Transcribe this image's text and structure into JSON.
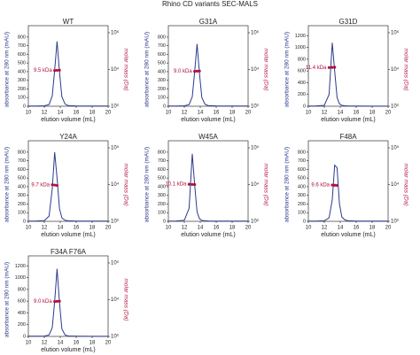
{
  "title": "Rhino CD variants SEC-MALS",
  "chart_data": [
    {
      "type": "line",
      "title": "WT",
      "xlabel": "elution volume (mL)",
      "ylabel": "absorbance at 280 nm (mAU)",
      "y2label": "molar mass (Da)",
      "annotation": "9.5 kDa",
      "x": [
        10,
        11,
        12,
        12.6,
        13,
        13.3,
        13.6,
        13.9,
        14.2,
        14.6,
        15,
        16,
        18,
        20
      ],
      "series": [
        {
          "name": "absorbance",
          "color": "#2b3a8c",
          "values": [
            2,
            3,
            5,
            20,
            120,
            420,
            750,
            400,
            110,
            25,
            8,
            4,
            2,
            2
          ]
        },
        {
          "name": "molar mass",
          "color": "#b0103a",
          "axis": "y2",
          "values": [
            null,
            null,
            null,
            null,
            null,
            9400,
            9500,
            9600,
            null,
            null,
            null,
            null,
            null,
            null
          ]
        }
      ],
      "xlim": [
        10,
        20
      ],
      "xticks": [
        10,
        12,
        14,
        16,
        18,
        20
      ],
      "ylim": [
        0,
        850
      ],
      "yticks": [
        0,
        100,
        200,
        300,
        400,
        500,
        600,
        700,
        800
      ],
      "y2lim": [
        1000,
        100000
      ],
      "y2ticks": [
        {
          "value": 1000,
          "label": "10³"
        },
        {
          "value": 10000,
          "label": "10⁴"
        },
        {
          "value": 100000,
          "label": "10⁵"
        }
      ],
      "y2log": true
    },
    {
      "type": "line",
      "title": "G31A",
      "xlabel": "elution volume (mL)",
      "ylabel": "absorbance at 280 nm (mAU)",
      "y2label": "molar mass (Da)",
      "annotation": "9.0 kDa",
      "x": [
        10,
        11,
        12,
        12.6,
        13,
        13.3,
        13.6,
        13.9,
        14.2,
        14.6,
        15,
        16,
        18,
        20
      ],
      "series": [
        {
          "name": "absorbance",
          "color": "#2b3a8c",
          "values": [
            2,
            3,
            5,
            18,
            110,
            400,
            720,
            380,
            100,
            22,
            8,
            4,
            2,
            2
          ]
        },
        {
          "name": "molar mass",
          "color": "#b0103a",
          "axis": "y2",
          "values": [
            null,
            null,
            null,
            null,
            null,
            8900,
            9000,
            9100,
            null,
            null,
            null,
            null,
            null,
            null
          ]
        }
      ],
      "xlim": [
        10,
        20
      ],
      "xticks": [
        10,
        12,
        14,
        16,
        18,
        20
      ],
      "ylim": [
        0,
        850
      ],
      "yticks": [
        0,
        100,
        200,
        300,
        400,
        500,
        600,
        700,
        800
      ],
      "y2lim": [
        1000,
        100000
      ],
      "y2ticks": [
        {
          "value": 1000,
          "label": "10³"
        },
        {
          "value": 10000,
          "label": "10⁴"
        },
        {
          "value": 100000,
          "label": "10⁵"
        }
      ],
      "y2log": true
    },
    {
      "type": "line",
      "title": "G31D",
      "xlabel": "elution volume (mL)",
      "ylabel": "absorbance at 280 nm (mAU)",
      "y2label": "molar mass (Da)",
      "annotation": "11.4 kDa",
      "x": [
        10,
        11,
        12,
        12.6,
        13,
        13.3,
        13.6,
        13.9,
        14.2,
        14.6,
        15,
        16,
        18,
        20
      ],
      "series": [
        {
          "name": "absorbance",
          "color": "#2b3a8c",
          "values": [
            3,
            5,
            15,
            200,
            1080,
            600,
            150,
            40,
            15,
            8,
            5,
            3,
            2,
            2
          ]
        },
        {
          "name": "molar mass",
          "color": "#b0103a",
          "axis": "y2",
          "values": [
            null,
            null,
            null,
            11300,
            11400,
            11500,
            null,
            null,
            null,
            null,
            null,
            null,
            null,
            null
          ]
        }
      ],
      "xlim": [
        10,
        20
      ],
      "xticks": [
        10,
        12,
        14,
        16,
        18,
        20
      ],
      "ylim": [
        0,
        1250
      ],
      "yticks": [
        0,
        200,
        400,
        600,
        800,
        1000,
        1200
      ],
      "y2lim": [
        1000,
        100000
      ],
      "y2ticks": [
        {
          "value": 1000,
          "label": "10³"
        },
        {
          "value": 10000,
          "label": "10⁴"
        },
        {
          "value": 100000,
          "label": "10⁵"
        }
      ],
      "y2log": true
    },
    {
      "type": "line",
      "title": "Y24A",
      "xlabel": "elution volume (mL)",
      "ylabel": "absorbance at 280 nm (mAU)",
      "y2label": "molar mass (Da)",
      "annotation": "9.7 kDa",
      "x": [
        10,
        11,
        12,
        12.6,
        13,
        13.3,
        13.6,
        13.9,
        14.2,
        14.6,
        15,
        16,
        18,
        20
      ],
      "series": [
        {
          "name": "absorbance",
          "color": "#2b3a8c",
          "values": [
            2,
            4,
            8,
            60,
            380,
            800,
            500,
            150,
            40,
            12,
            6,
            3,
            2,
            2
          ]
        },
        {
          "name": "molar mass",
          "color": "#b0103a",
          "axis": "y2",
          "values": [
            null,
            null,
            null,
            null,
            9900,
            9700,
            9500,
            null,
            null,
            null,
            null,
            null,
            null,
            null
          ]
        }
      ],
      "xlim": [
        10,
        20
      ],
      "xticks": [
        10,
        12,
        14,
        16,
        18,
        20
      ],
      "ylim": [
        0,
        850
      ],
      "yticks": [
        0,
        100,
        200,
        300,
        400,
        500,
        600,
        700,
        800
      ],
      "y2lim": [
        1000,
        100000
      ],
      "y2ticks": [
        {
          "value": 1000,
          "label": "10³"
        },
        {
          "value": 10000,
          "label": "10⁴"
        },
        {
          "value": 100000,
          "label": "10⁵"
        }
      ],
      "y2log": true
    },
    {
      "type": "line",
      "title": "W45A",
      "xlabel": "elution volume (mL)",
      "ylabel": "absorbance at 280 nm (mAU)",
      "y2label": "molar mass (Da)",
      "annotation": "10.1 kDa",
      "x": [
        10,
        11,
        12,
        12.6,
        13,
        13.3,
        13.6,
        13.9,
        14.2,
        14.6,
        15,
        16,
        18,
        20
      ],
      "series": [
        {
          "name": "absorbance",
          "color": "#2b3a8c",
          "values": [
            2,
            4,
            12,
            150,
            780,
            420,
            110,
            30,
            10,
            6,
            4,
            3,
            2,
            2
          ]
        },
        {
          "name": "molar mass",
          "color": "#b0103a",
          "axis": "y2",
          "values": [
            null,
            null,
            null,
            10200,
            10100,
            10000,
            null,
            null,
            null,
            null,
            null,
            null,
            null,
            null
          ]
        }
      ],
      "xlim": [
        10,
        20
      ],
      "xticks": [
        10,
        12,
        14,
        16,
        18,
        20
      ],
      "ylim": [
        0,
        850
      ],
      "yticks": [
        0,
        100,
        200,
        300,
        400,
        500,
        600,
        700,
        800
      ],
      "y2lim": [
        1000,
        100000
      ],
      "y2ticks": [
        {
          "value": 1000,
          "label": "10³"
        },
        {
          "value": 10000,
          "label": "10⁴"
        },
        {
          "value": 100000,
          "label": "10⁵"
        }
      ],
      "y2log": true
    },
    {
      "type": "line",
      "title": "F48A",
      "xlabel": "elution volume (mL)",
      "ylabel": "absorbance at 280 nm (mAU)",
      "y2label": "molar mass (Da)",
      "annotation": "9.6 kDa",
      "x": [
        10,
        11,
        12,
        12.6,
        13,
        13.3,
        13.6,
        13.9,
        14.2,
        14.6,
        15,
        16,
        18,
        20
      ],
      "series": [
        {
          "name": "absorbance",
          "color": "#2b3a8c",
          "values": [
            2,
            3,
            6,
            40,
            250,
            650,
            620,
            200,
            50,
            15,
            6,
            3,
            2,
            2
          ]
        },
        {
          "name": "molar mass",
          "color": "#b0103a",
          "axis": "y2",
          "values": [
            null,
            null,
            null,
            null,
            9700,
            9600,
            9500,
            null,
            null,
            null,
            null,
            null,
            null,
            null
          ]
        }
      ],
      "xlim": [
        10,
        20
      ],
      "xticks": [
        10,
        12,
        14,
        16,
        18,
        20
      ],
      "ylim": [
        0,
        850
      ],
      "yticks": [
        0,
        100,
        200,
        300,
        400,
        500,
        600,
        700,
        800
      ],
      "y2lim": [
        1000,
        100000
      ],
      "y2ticks": [
        {
          "value": 1000,
          "label": "10³"
        },
        {
          "value": 10000,
          "label": "10⁴"
        },
        {
          "value": 100000,
          "label": "10⁵"
        }
      ],
      "y2log": true
    },
    {
      "type": "line",
      "title": "F34A F76A",
      "xlabel": "elution volume (mL)",
      "ylabel": "absorbance at 280 nm (mAU)",
      "y2label": "molar mass (Da)",
      "annotation": "9.0 kDa",
      "x": [
        10,
        11,
        12,
        12.6,
        13,
        13.3,
        13.6,
        13.9,
        14.2,
        14.6,
        15,
        16,
        18,
        20
      ],
      "series": [
        {
          "name": "absorbance",
          "color": "#2b3a8c",
          "values": [
            3,
            4,
            6,
            25,
            150,
            600,
            1150,
            580,
            130,
            25,
            8,
            4,
            2,
            2
          ]
        },
        {
          "name": "molar mass",
          "color": "#b0103a",
          "axis": "y2",
          "values": [
            null,
            null,
            null,
            null,
            null,
            8900,
            9000,
            9100,
            null,
            null,
            null,
            null,
            null,
            null
          ]
        }
      ],
      "xlim": [
        10,
        20
      ],
      "xticks": [
        10,
        12,
        14,
        16,
        18,
        20
      ],
      "ylim": [
        0,
        1250
      ],
      "yticks": [
        0,
        200,
        400,
        600,
        800,
        1000,
        1200
      ],
      "y2lim": [
        1000,
        100000
      ],
      "y2ticks": [
        {
          "value": 1000,
          "label": "10³"
        },
        {
          "value": 10000,
          "label": "10⁴"
        },
        {
          "value": 100000,
          "label": "10⁵"
        }
      ],
      "y2log": true
    }
  ]
}
